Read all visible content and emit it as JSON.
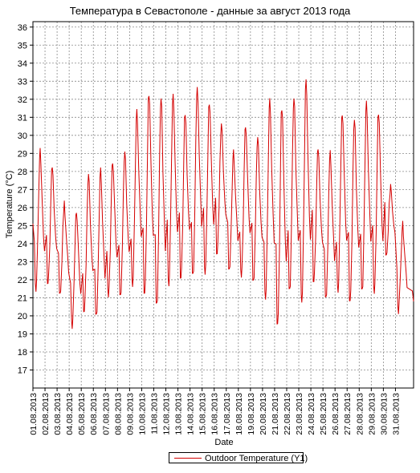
{
  "chart_data": {
    "type": "line",
    "title": "Температура в Севастополе - данные за август 2013 года",
    "xlabel": "Date",
    "ylabel": "Temperature (°C)",
    "ylim": [
      16,
      36.3
    ],
    "yticks": [
      17,
      18,
      19,
      20,
      21,
      22,
      23,
      24,
      25,
      26,
      27,
      28,
      29,
      30,
      31,
      32,
      33,
      34,
      35,
      36
    ],
    "xticks": [
      "01.08.2013",
      "02.08.2013",
      "03.08.2013",
      "04.08.2013",
      "05.08.2013",
      "06.08.2013",
      "07.08.2013",
      "08.08.2013",
      "09.08.2013",
      "10.08.2013",
      "11.08.2013",
      "12.08.2013",
      "13.08.2013",
      "14.08.2013",
      "15.08.2013",
      "16.08.2013",
      "17.08.2013",
      "18.08.2013",
      "19.08.2013",
      "20.08.2013",
      "21.08.2013",
      "22.08.2013",
      "23.08.2013",
      "24.08.2013",
      "25.08.2013",
      "26.08.2013",
      "27.08.2013",
      "28.08.2013",
      "29.08.2013",
      "30.08.2013",
      "31.08.2013"
    ],
    "xlim": [
      0,
      31.5
    ],
    "grid": true,
    "legend_position": "bottom-center",
    "series": [
      {
        "name": "Outdoor Temperature (Y1)",
        "color": "#d40000",
        "daily_points": [
          {
            "date": "01.08.2013",
            "min": 21.5,
            "max": 29.1
          },
          {
            "date": "02.08.2013",
            "min": 21.8,
            "max": 28.3
          },
          {
            "date": "03.08.2013",
            "min": 21.1,
            "max": 26.3
          },
          {
            "date": "04.08.2013",
            "min": 19.4,
            "max": 25.9
          },
          {
            "date": "05.08.2013",
            "min": 20.2,
            "max": 27.9
          },
          {
            "date": "06.08.2013",
            "min": 19.9,
            "max": 28.1
          },
          {
            "date": "07.08.2013",
            "min": 21.1,
            "max": 28.6
          },
          {
            "date": "08.08.2013",
            "min": 21.1,
            "max": 29.1
          },
          {
            "date": "09.08.2013",
            "min": 21.8,
            "max": 31.3
          },
          {
            "date": "10.08.2013",
            "min": 21.3,
            "max": 32.3
          },
          {
            "date": "11.08.2013",
            "min": 20.6,
            "max": 32.0
          },
          {
            "date": "12.08.2013",
            "min": 21.8,
            "max": 32.1
          },
          {
            "date": "13.08.2013",
            "min": 22.1,
            "max": 31.2
          },
          {
            "date": "14.08.2013",
            "min": 22.2,
            "max": 32.6
          },
          {
            "date": "15.08.2013",
            "min": 22.4,
            "max": 31.9
          },
          {
            "date": "16.08.2013",
            "min": 23.4,
            "max": 30.7
          },
          {
            "date": "17.08.2013",
            "min": 22.4,
            "max": 29.1
          },
          {
            "date": "18.08.2013",
            "min": 22.2,
            "max": 30.6
          },
          {
            "date": "19.08.2013",
            "min": 21.9,
            "max": 29.9
          },
          {
            "date": "20.08.2013",
            "min": 21.1,
            "max": 31.9
          },
          {
            "date": "21.08.2013",
            "min": 19.6,
            "max": 31.5
          },
          {
            "date": "22.08.2013",
            "min": 21.4,
            "max": 32.0
          },
          {
            "date": "23.08.2013",
            "min": 20.9,
            "max": 32.9
          },
          {
            "date": "24.08.2013",
            "min": 21.9,
            "max": 29.3
          },
          {
            "date": "25.08.2013",
            "min": 20.9,
            "max": 29.1
          },
          {
            "date": "26.08.2013",
            "min": 21.4,
            "max": 31.3
          },
          {
            "date": "27.08.2013",
            "min": 20.8,
            "max": 30.9
          },
          {
            "date": "28.08.2013",
            "min": 21.3,
            "max": 31.8
          },
          {
            "date": "29.08.2013",
            "min": 21.3,
            "max": 31.3
          },
          {
            "date": "30.08.2013",
            "min": 23.3,
            "max": 27.3
          },
          {
            "date": "31.08.2013",
            "min": 20.3,
            "max": 25.1
          }
        ],
        "end_value": 21.0
      }
    ]
  }
}
